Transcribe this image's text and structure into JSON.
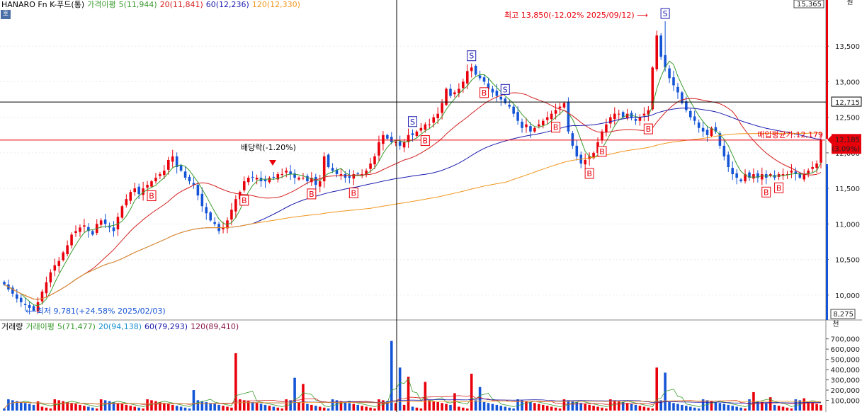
{
  "header": {
    "title": "HANARO Fn K-푸드(통)",
    "ma_label": "가격이평",
    "ma5": "5(11,944)",
    "ma20": "20(11,841)",
    "ma60": "60(12,236)",
    "ma120": "120(12,330)",
    "badge": "호"
  },
  "volume_header": {
    "title": "거래량",
    "ma_label": "거래이평",
    "ma5": "5(71,477)",
    "ma20": "20(94,138)",
    "ma60": "60(79,293)",
    "ma120": "120(89,410)"
  },
  "price_axis": {
    "top_value": "15,365",
    "bottom_value": "8,275",
    "unit_top": "원",
    "unit_bottom": "천",
    "ticks": [
      "13,500",
      "13,000",
      "12,500",
      "12,000",
      "11,500",
      "11,000",
      "10,500",
      "10,000"
    ],
    "crosshair_value": "12,715",
    "current_price": "12,185",
    "current_change": "(3.09%)"
  },
  "volume_axis": {
    "ticks": [
      "700,000",
      "600,000",
      "500,000",
      "400,000",
      "300,000",
      "200,000",
      "100,000"
    ]
  },
  "annotations": {
    "high": "최고 13,850(-12.02% 2025/09/12)",
    "low": "최저 9,781(+24.58% 2025/02/03)",
    "dividend": "배당락(-1.20%)",
    "avg_price": "매입평균가:12,179"
  },
  "colors": {
    "up": "#e8000b",
    "down": "#1454d6",
    "ma5": "#3a9b2e",
    "ma20": "#d42020",
    "ma60": "#1c1cb0",
    "ma120": "#f0961e"
  },
  "chart_data": {
    "type": "candlestick",
    "price_range": [
      9650,
      13950
    ],
    "volume_range": [
      0,
      760000
    ],
    "closes": [
      10150,
      10080,
      10020,
      9950,
      9900,
      9860,
      9820,
      9780,
      9900,
      10050,
      10180,
      10320,
      10420,
      10480,
      10600,
      10700,
      10850,
      10900,
      10950,
      10980,
      10900,
      10850,
      11000,
      11050,
      11000,
      10950,
      10900,
      11100,
      11250,
      11350,
      11450,
      11500,
      11420,
      11500,
      11550,
      11600,
      11650,
      11700,
      11750,
      11900,
      11950,
      11800,
      11750,
      11650,
      11600,
      11550,
      11400,
      11250,
      11150,
      11050,
      11000,
      10900,
      10950,
      11050,
      11200,
      11350,
      11450,
      11600,
      11650,
      11650,
      11650,
      11600,
      11600,
      11650,
      11650,
      11700,
      11700,
      11750,
      11700,
      11650,
      11650,
      11650,
      11600,
      11650,
      11550,
      11600,
      11950,
      11800,
      11750,
      11700,
      11700,
      11650,
      11650,
      11700,
      11700,
      11700,
      11750,
      11850,
      11950,
      12150,
      12250,
      12200,
      12150,
      12150,
      12100,
      12150,
      12250,
      12250,
      12300,
      12350,
      12400,
      12400,
      12500,
      12550,
      12700,
      12900,
      12800,
      12850,
      12900,
      13000,
      13150,
      13200,
      13100,
      13050,
      13000,
      12900,
      12850,
      12800,
      12750,
      12700,
      12650,
      12550,
      12450,
      12350,
      12400,
      12300,
      12350,
      12400,
      12450,
      12500,
      12550,
      12600,
      12650,
      12700,
      12300,
      12100,
      11950,
      11850,
      11900,
      11950,
      12000,
      12150,
      12300,
      12400,
      12500,
      12550,
      12550,
      12500,
      12550,
      12500,
      12450,
      12500,
      12550,
      12600,
      13200,
      13650,
      13350,
      13200,
      13050,
      12950,
      12850,
      12700,
      12600,
      12500,
      12450,
      12350,
      12300,
      12250,
      12350,
      12300,
      12100,
      11950,
      11800,
      11700,
      11650,
      11600,
      11700,
      11650,
      11700,
      11650,
      11700,
      11650,
      11700,
      11650,
      11700,
      11700,
      11700,
      11750,
      11700,
      11650,
      11700,
      11750,
      11800,
      11850,
      12185
    ],
    "ma": {
      "ma5": "5",
      "ma20": "20",
      "ma60": "60",
      "ma120": "120"
    },
    "markers": {
      "buy": "B",
      "sell": "S"
    }
  }
}
